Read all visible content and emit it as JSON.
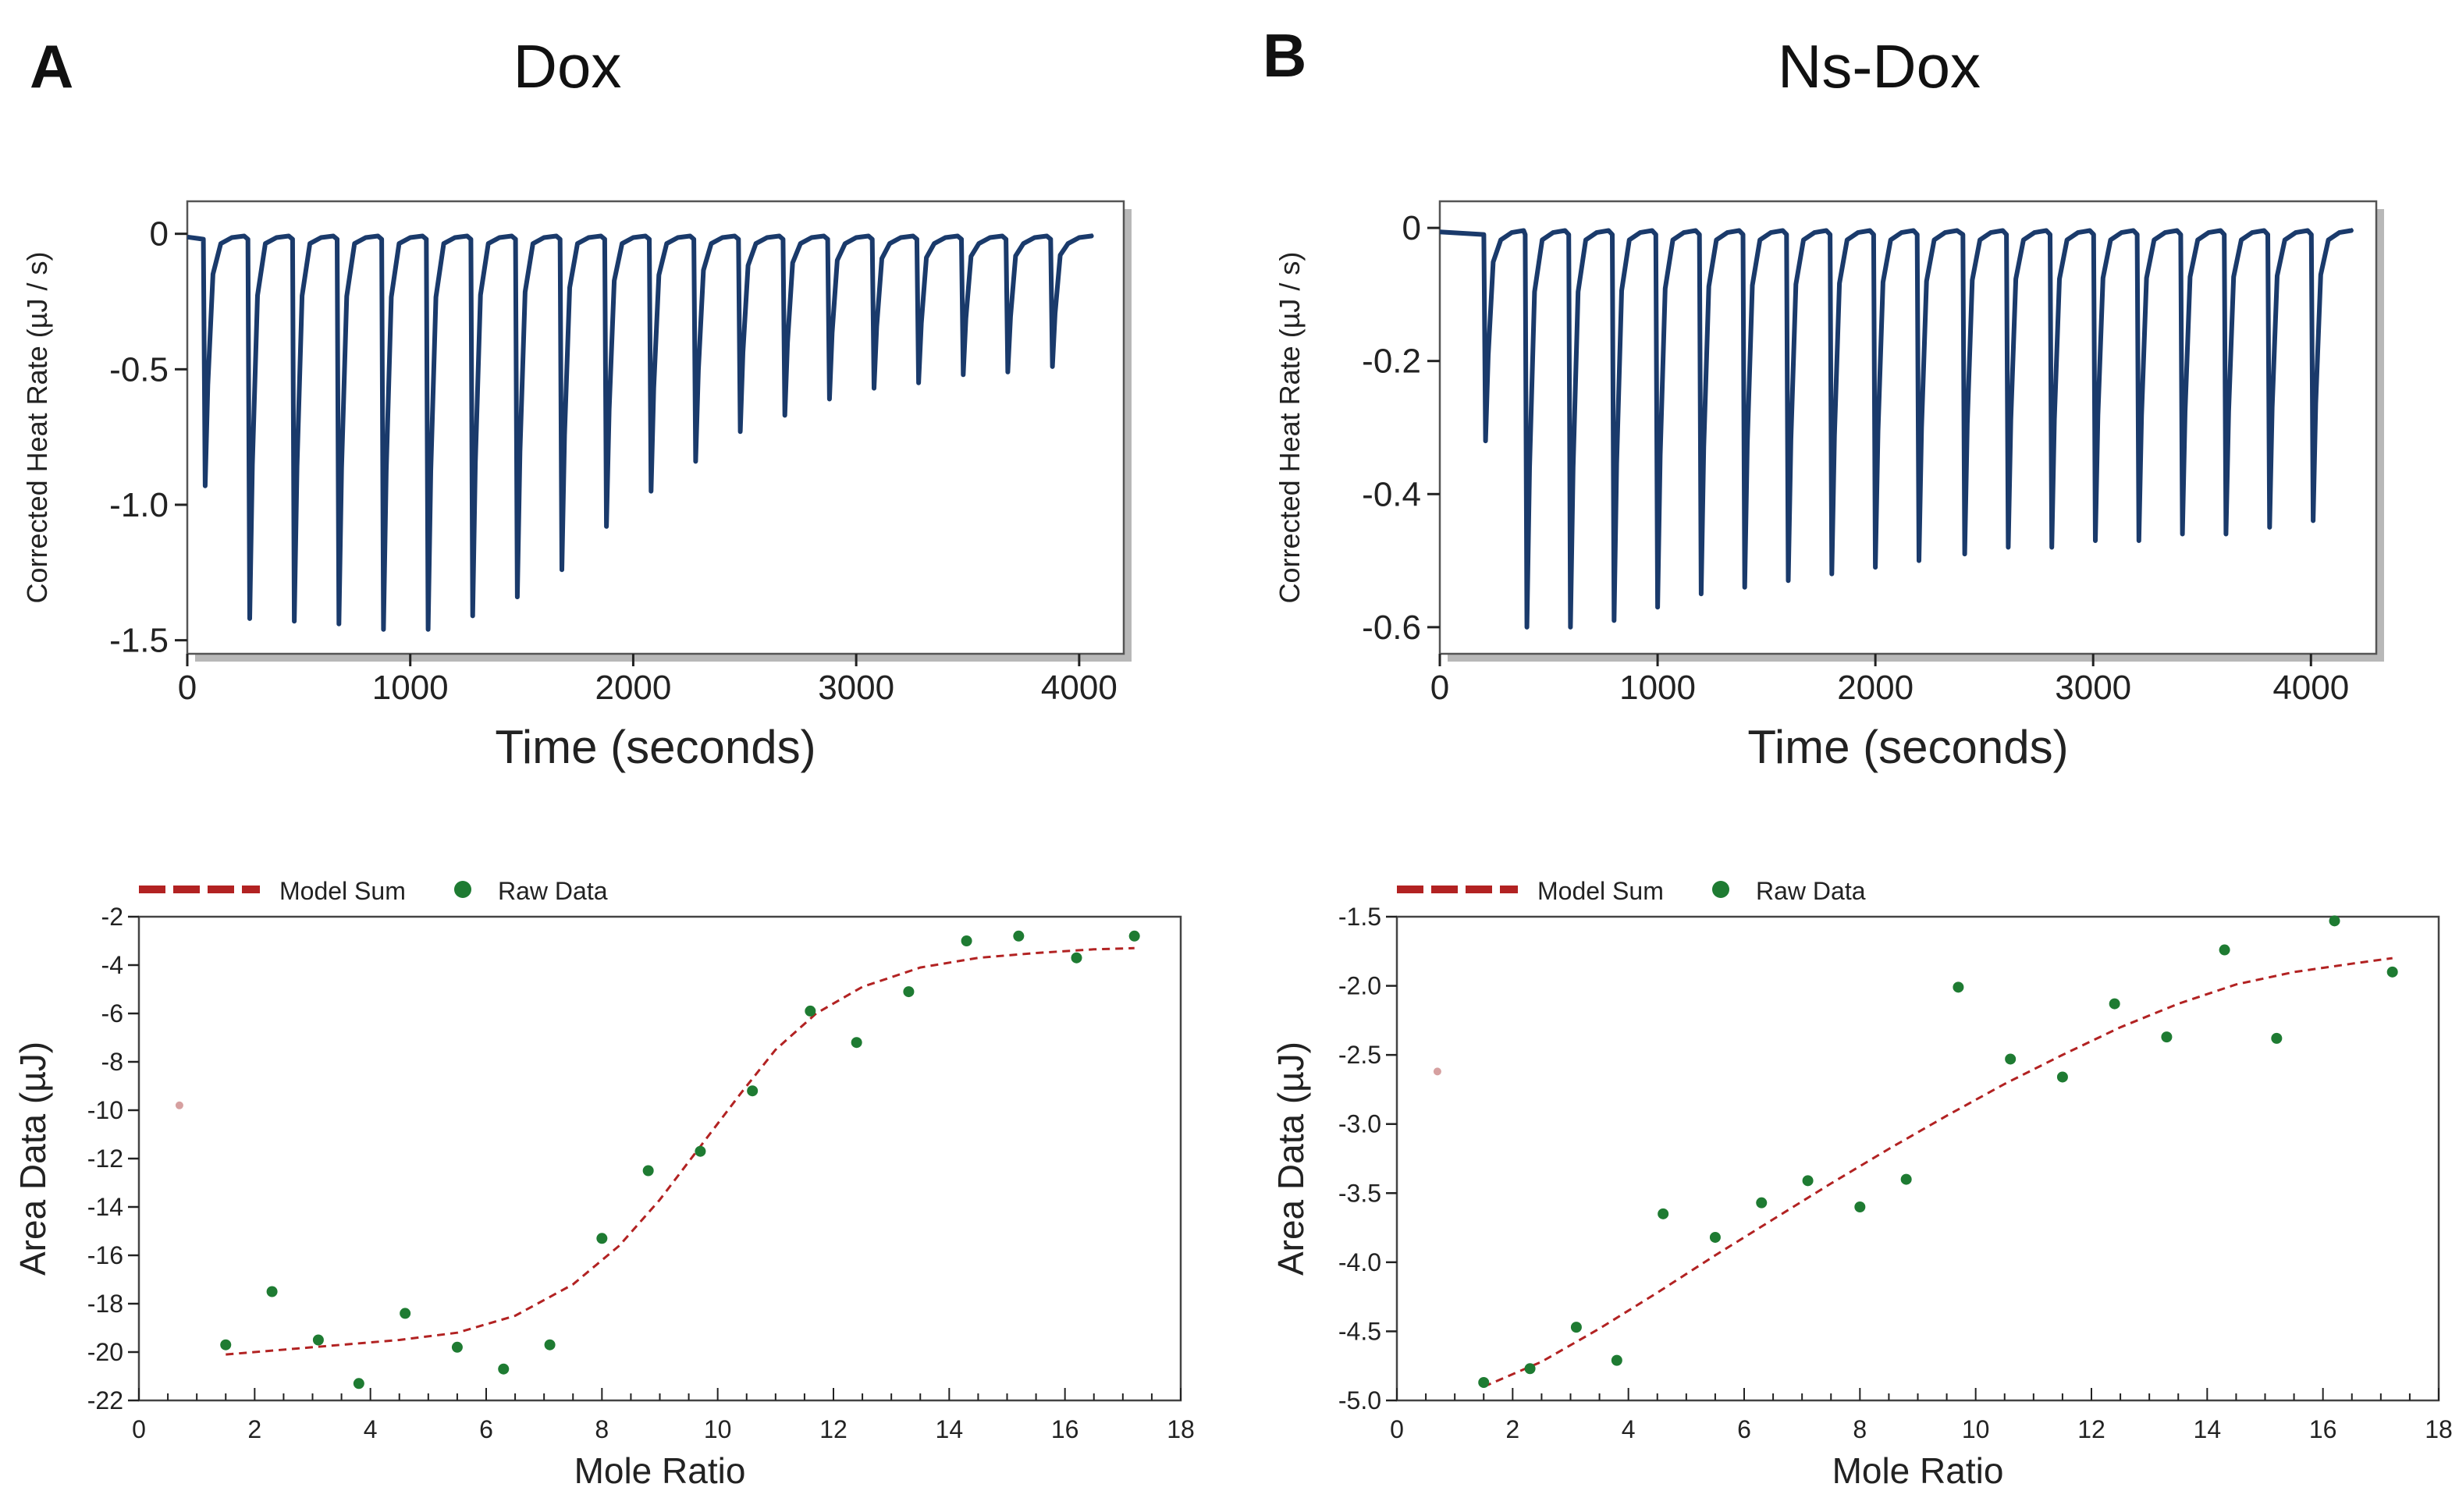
{
  "panels": [
    {
      "letter": "A",
      "title": "Dox"
    },
    {
      "letter": "B",
      "title": "Ns-Dox"
    }
  ],
  "colors": {
    "trace": "#1a3a6b",
    "model": "#b22222",
    "raw": "#1e7b32",
    "outlier": "#d6a0a0",
    "axis": "#222222"
  },
  "chart_data": [
    {
      "id": "A-thermogram",
      "type": "line",
      "xlabel": "Time (seconds)",
      "ylabel": "Corrected Heat Rate (µJ / s)",
      "xlim": [
        0,
        4200
      ],
      "ylim": [
        -1.55,
        0.12
      ],
      "xticks": [
        0,
        1000,
        2000,
        3000,
        4000
      ],
      "yticks": [
        0,
        -0.5,
        -1.0,
        -1.5
      ],
      "ytick_labels": [
        "0",
        "-0.5",
        "-1.0",
        "-1.5"
      ],
      "baseline": -0.02,
      "end_time": 4050,
      "peaks": [
        {
          "t": 80,
          "depth": -0.93
        },
        {
          "t": 280,
          "depth": -1.42
        },
        {
          "t": 480,
          "depth": -1.43
        },
        {
          "t": 680,
          "depth": -1.44
        },
        {
          "t": 880,
          "depth": -1.46
        },
        {
          "t": 1080,
          "depth": -1.46
        },
        {
          "t": 1280,
          "depth": -1.41
        },
        {
          "t": 1480,
          "depth": -1.34
        },
        {
          "t": 1680,
          "depth": -1.24
        },
        {
          "t": 1880,
          "depth": -1.08
        },
        {
          "t": 2080,
          "depth": -0.95
        },
        {
          "t": 2280,
          "depth": -0.84
        },
        {
          "t": 2480,
          "depth": -0.73
        },
        {
          "t": 2680,
          "depth": -0.67
        },
        {
          "t": 2880,
          "depth": -0.61
        },
        {
          "t": 3080,
          "depth": -0.57
        },
        {
          "t": 3280,
          "depth": -0.55
        },
        {
          "t": 3480,
          "depth": -0.52
        },
        {
          "t": 3680,
          "depth": -0.51
        },
        {
          "t": 3880,
          "depth": -0.49
        }
      ]
    },
    {
      "id": "B-thermogram",
      "type": "line",
      "xlabel": "Time (seconds)",
      "ylabel": "Corrected Heat Rate (µJ / s)",
      "xlim": [
        0,
        4300
      ],
      "ylim": [
        -0.64,
        0.04
      ],
      "xticks": [
        0,
        1000,
        2000,
        3000,
        4000
      ],
      "yticks": [
        0,
        -0.2,
        -0.4,
        -0.6
      ],
      "ytick_labels": [
        "0",
        "-0.2",
        "-0.4",
        "-0.6"
      ],
      "baseline": -0.01,
      "end_time": 4180,
      "peaks": [
        {
          "t": 210,
          "depth": -0.32
        },
        {
          "t": 400,
          "depth": -0.6
        },
        {
          "t": 600,
          "depth": -0.6
        },
        {
          "t": 800,
          "depth": -0.59
        },
        {
          "t": 1000,
          "depth": -0.57
        },
        {
          "t": 1200,
          "depth": -0.55
        },
        {
          "t": 1400,
          "depth": -0.54
        },
        {
          "t": 1600,
          "depth": -0.53
        },
        {
          "t": 1800,
          "depth": -0.52
        },
        {
          "t": 2000,
          "depth": -0.51
        },
        {
          "t": 2200,
          "depth": -0.5
        },
        {
          "t": 2410,
          "depth": -0.49
        },
        {
          "t": 2610,
          "depth": -0.48
        },
        {
          "t": 2810,
          "depth": -0.48
        },
        {
          "t": 3010,
          "depth": -0.47
        },
        {
          "t": 3210,
          "depth": -0.47
        },
        {
          "t": 3410,
          "depth": -0.46
        },
        {
          "t": 3610,
          "depth": -0.46
        },
        {
          "t": 3810,
          "depth": -0.45
        },
        {
          "t": 4010,
          "depth": -0.44
        }
      ]
    },
    {
      "id": "A-isotherm",
      "type": "scatter",
      "xlabel": "Mole Ratio",
      "ylabel": "Area Data (µJ)",
      "xlim": [
        0,
        18
      ],
      "ylim": [
        -22,
        -2
      ],
      "xticks": [
        0,
        2,
        4,
        6,
        8,
        10,
        12,
        14,
        16,
        18
      ],
      "yticks": [
        -2,
        -4,
        -6,
        -8,
        -10,
        -12,
        -14,
        -16,
        -18,
        -20,
        -22
      ],
      "legend": {
        "model": "Model Sum",
        "raw": "Raw Data"
      },
      "outlier": {
        "x": 0.7,
        "y": -9.8
      },
      "raw_points": [
        [
          1.5,
          -19.7
        ],
        [
          2.3,
          -17.5
        ],
        [
          3.1,
          -19.5
        ],
        [
          3.8,
          -21.3
        ],
        [
          4.6,
          -18.4
        ],
        [
          5.5,
          -19.8
        ],
        [
          6.3,
          -20.7
        ],
        [
          7.1,
          -19.7
        ],
        [
          8.0,
          -15.3
        ],
        [
          8.8,
          -12.5
        ],
        [
          9.7,
          -11.7
        ],
        [
          10.6,
          -9.2
        ],
        [
          11.6,
          -5.9
        ],
        [
          12.4,
          -7.2
        ],
        [
          13.3,
          -5.1
        ],
        [
          14.3,
          -3.0
        ],
        [
          15.2,
          -2.8
        ],
        [
          16.2,
          -3.7
        ],
        [
          17.2,
          -2.8
        ]
      ],
      "model_curve": [
        [
          1.5,
          -20.1
        ],
        [
          3.0,
          -19.8
        ],
        [
          4.5,
          -19.5
        ],
        [
          5.5,
          -19.2
        ],
        [
          6.5,
          -18.5
        ],
        [
          7.5,
          -17.2
        ],
        [
          8.3,
          -15.6
        ],
        [
          9.0,
          -13.7
        ],
        [
          9.7,
          -11.5
        ],
        [
          10.4,
          -9.3
        ],
        [
          11.0,
          -7.5
        ],
        [
          11.7,
          -6.0
        ],
        [
          12.5,
          -4.9
        ],
        [
          13.5,
          -4.1
        ],
        [
          14.5,
          -3.7
        ],
        [
          15.5,
          -3.5
        ],
        [
          16.5,
          -3.35
        ],
        [
          17.2,
          -3.3
        ]
      ]
    },
    {
      "id": "B-isotherm",
      "type": "scatter",
      "xlabel": "Mole Ratio",
      "ylabel": "Area Data (µJ)",
      "xlim": [
        0,
        18
      ],
      "ylim": [
        -5.0,
        -1.5
      ],
      "xticks": [
        0,
        2,
        4,
        6,
        8,
        10,
        12,
        14,
        16,
        18
      ],
      "yticks": [
        -1.5,
        -2.0,
        -2.5,
        -3.0,
        -3.5,
        -4.0,
        -4.5,
        -5.0
      ],
      "ytick_labels": [
        "-1.5",
        "-2.0",
        "-2.5",
        "-3.0",
        "-3.5",
        "-4.0",
        "-4.5",
        "-5.0"
      ],
      "legend": {
        "model": "Model Sum",
        "raw": "Raw Data"
      },
      "outlier": {
        "x": 0.7,
        "y": -2.62
      },
      "raw_points": [
        [
          1.5,
          -4.87
        ],
        [
          2.3,
          -4.77
        ],
        [
          3.1,
          -4.47
        ],
        [
          3.8,
          -4.71
        ],
        [
          4.6,
          -3.65
        ],
        [
          5.5,
          -3.82
        ],
        [
          6.3,
          -3.57
        ],
        [
          7.1,
          -3.41
        ],
        [
          8.0,
          -3.6
        ],
        [
          8.8,
          -3.4
        ],
        [
          9.7,
          -2.01
        ],
        [
          10.6,
          -2.53
        ],
        [
          11.5,
          -2.66
        ],
        [
          12.4,
          -2.13
        ],
        [
          13.3,
          -2.37
        ],
        [
          14.3,
          -1.74
        ],
        [
          15.2,
          -2.38
        ],
        [
          16.2,
          -1.53
        ],
        [
          17.2,
          -1.9
        ]
      ],
      "model_curve": [
        [
          1.5,
          -4.9
        ],
        [
          2.5,
          -4.72
        ],
        [
          3.5,
          -4.48
        ],
        [
          4.5,
          -4.22
        ],
        [
          5.5,
          -3.95
        ],
        [
          6.5,
          -3.69
        ],
        [
          7.5,
          -3.43
        ],
        [
          8.5,
          -3.18
        ],
        [
          9.5,
          -2.94
        ],
        [
          10.5,
          -2.71
        ],
        [
          11.5,
          -2.5
        ],
        [
          12.5,
          -2.3
        ],
        [
          13.5,
          -2.13
        ],
        [
          14.5,
          -1.99
        ],
        [
          15.5,
          -1.9
        ],
        [
          16.5,
          -1.84
        ],
        [
          17.2,
          -1.8
        ]
      ]
    }
  ]
}
